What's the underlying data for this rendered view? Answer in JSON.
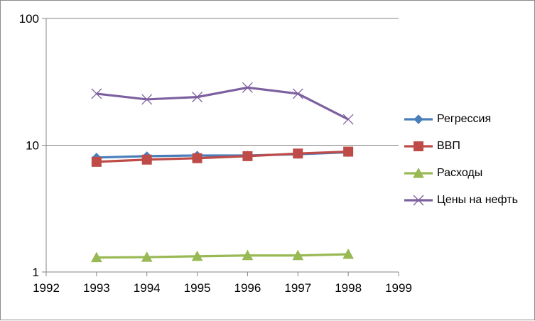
{
  "chart_data": {
    "type": "line",
    "y_scale": "log",
    "ylim": [
      1,
      100
    ],
    "xlim": [
      1992,
      1999
    ],
    "x_ticks": [
      "1992",
      "1993",
      "1994",
      "1995",
      "1996",
      "1997",
      "1998",
      "1999"
    ],
    "y_ticks": [
      "1",
      "10",
      "100"
    ],
    "x": [
      1993,
      1994,
      1995,
      1996,
      1997,
      1998
    ],
    "grid": "horizontal major gridlines",
    "legend_position": "right",
    "series": [
      {
        "name": "Регрессия",
        "color": "#4a7ebb",
        "marker": "diamond",
        "values": [
          8.0,
          8.2,
          8.3,
          8.3,
          8.5,
          8.8
        ]
      },
      {
        "name": "ВВП",
        "color": "#be4b48",
        "marker": "square",
        "values": [
          7.4,
          7.7,
          7.9,
          8.2,
          8.6,
          8.9
        ]
      },
      {
        "name": "Расходы",
        "color": "#98b954",
        "marker": "triangle",
        "values": [
          1.3,
          1.31,
          1.33,
          1.35,
          1.35,
          1.38
        ]
      },
      {
        "name": "Цены на нефть",
        "color": "#7d60a0",
        "marker": "x",
        "values": [
          25.5,
          23.0,
          24.0,
          28.5,
          25.5,
          16.0
        ]
      }
    ]
  }
}
